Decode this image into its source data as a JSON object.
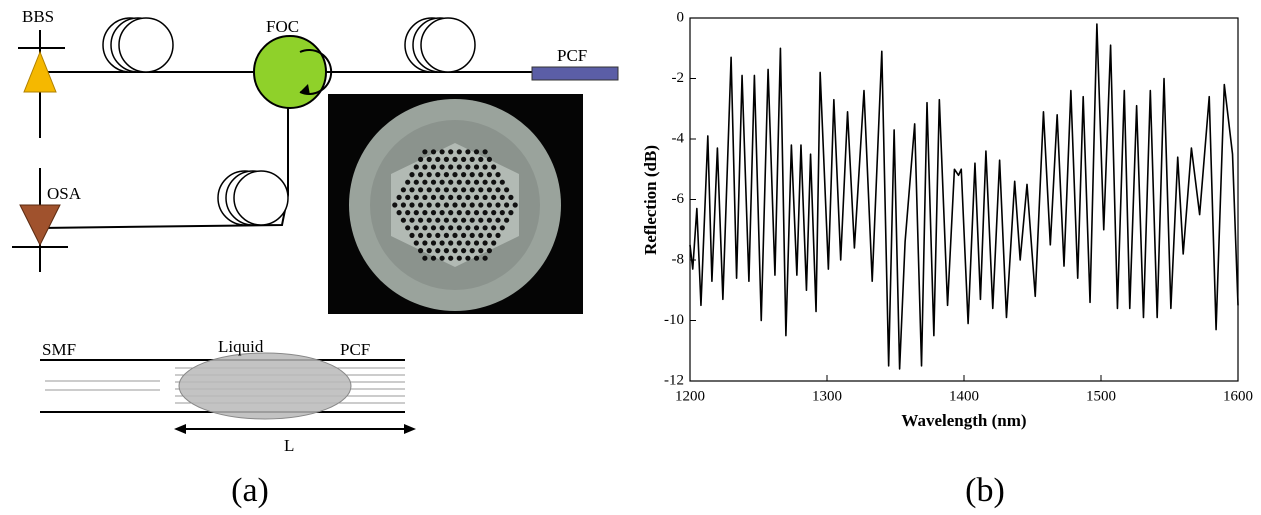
{
  "diagram": {
    "labels": [
      "BBS",
      "FOC",
      "PCF",
      "OSA",
      "SMF",
      "Liquid",
      "PCF",
      "L"
    ],
    "caption": "(a)"
  },
  "chart_data": {
    "type": "line",
    "caption": "(b)",
    "x_label": "Wavelength (nm)",
    "y_label": "Reflection (dB)",
    "xlim": [
      1200,
      1600
    ],
    "ylim": [
      -12,
      0
    ],
    "xticks": [
      1200,
      1300,
      1400,
      1500,
      1600
    ],
    "yticks": [
      -12,
      -10,
      -8,
      -6,
      -4,
      -2,
      0
    ],
    "series": [
      {
        "color": "#000000",
        "x": [
          1200,
          1202,
          1205,
          1208,
          1213,
          1216,
          1220,
          1224,
          1230,
          1234,
          1238,
          1243,
          1247,
          1252,
          1257,
          1262,
          1266,
          1270,
          1274,
          1278,
          1281,
          1285,
          1288,
          1292,
          1295,
          1301,
          1305,
          1310,
          1315,
          1320,
          1327,
          1333,
          1340,
          1345,
          1349,
          1353,
          1357,
          1364,
          1369,
          1373,
          1378,
          1382,
          1388,
          1393,
          1396,
          1398,
          1403,
          1408,
          1412,
          1416,
          1421,
          1426,
          1431,
          1437,
          1441,
          1446,
          1452,
          1458,
          1463,
          1468,
          1473,
          1478,
          1483,
          1487,
          1492,
          1497,
          1502,
          1507,
          1512,
          1517,
          1521,
          1526,
          1531,
          1536,
          1541,
          1546,
          1551,
          1556,
          1560,
          1566,
          1572,
          1579,
          1584,
          1590,
          1596,
          1600
        ],
        "values": [
          -7.5,
          -8.3,
          -6.3,
          -9.5,
          -3.9,
          -8.7,
          -4.3,
          -9.3,
          -1.3,
          -8.6,
          -1.9,
          -8.7,
          -1.9,
          -10.0,
          -1.7,
          -8.5,
          -1.0,
          -10.5,
          -4.2,
          -8.5,
          -4.2,
          -9.0,
          -4.5,
          -9.7,
          -1.8,
          -8.3,
          -2.7,
          -8.0,
          -3.1,
          -7.6,
          -2.4,
          -8.7,
          -1.1,
          -11.5,
          -3.7,
          -11.6,
          -7.4,
          -3.5,
          -11.5,
          -2.8,
          -10.5,
          -2.7,
          -9.5,
          -5.0,
          -5.2,
          -5.0,
          -10.1,
          -4.8,
          -9.3,
          -4.4,
          -9.6,
          -4.7,
          -9.9,
          -5.4,
          -8.0,
          -5.5,
          -9.2,
          -3.1,
          -7.5,
          -3.2,
          -8.2,
          -2.4,
          -8.6,
          -2.6,
          -9.4,
          -0.2,
          -7.0,
          -0.9,
          -9.6,
          -2.4,
          -9.6,
          -2.9,
          -9.9,
          -2.4,
          -9.9,
          -2.0,
          -9.6,
          -4.6,
          -7.8,
          -4.3,
          -6.5,
          -2.6,
          -10.3,
          -2.2,
          -4.5,
          -9.5
        ]
      }
    ]
  }
}
